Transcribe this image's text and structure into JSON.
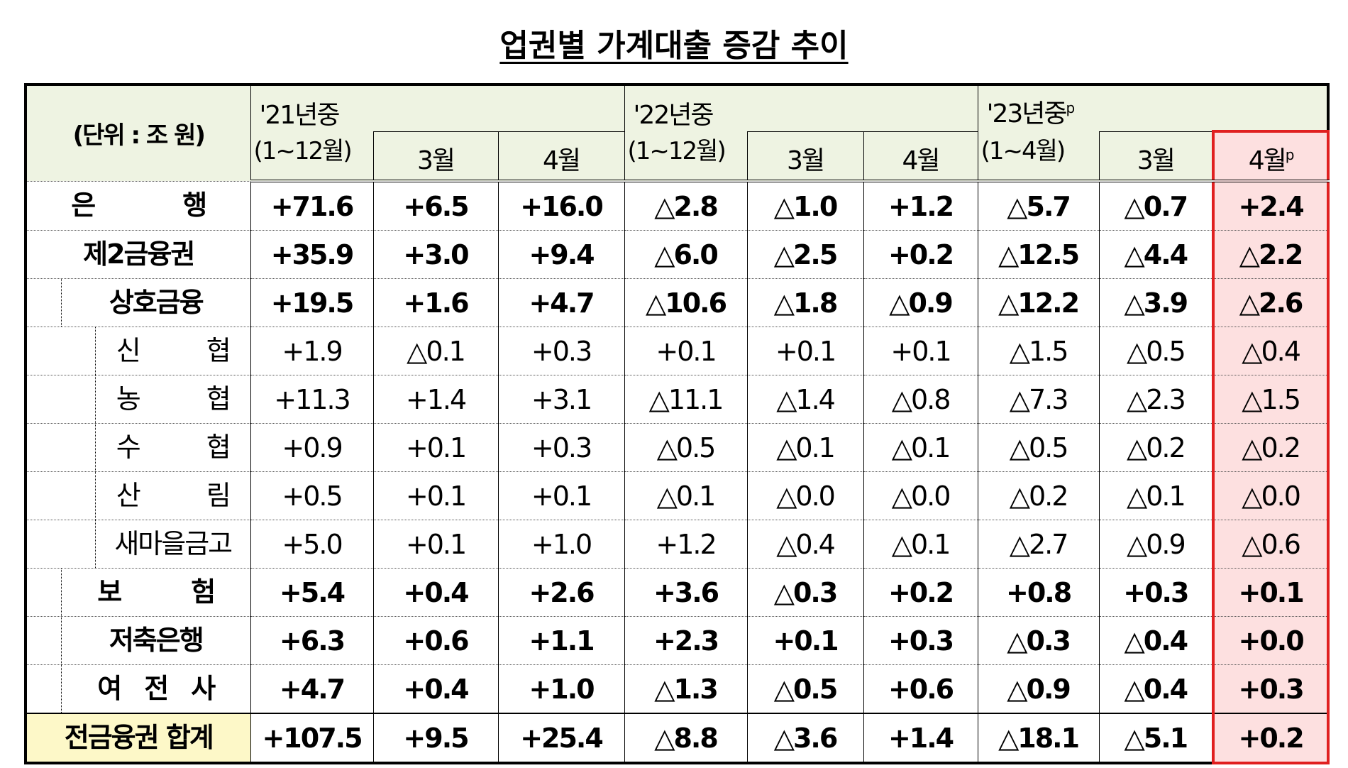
{
  "title": "업권별 가계대출 증감 추이",
  "table": {
    "unit": "(단위 : 조 원)",
    "groups": [
      {
        "year": "'21년중",
        "period": "(1~12월)"
      },
      {
        "year": "'22년중",
        "period": "(1~12월)"
      },
      {
        "year": "'23년중",
        "year_sup": "p",
        "period": "(1~4월)"
      }
    ],
    "months": [
      {
        "text": "3월"
      },
      {
        "text": "4월"
      },
      {
        "text": "3월"
      },
      {
        "text": "4월"
      },
      {
        "text": "3월"
      },
      {
        "text": "4월",
        "sup": "p"
      }
    ],
    "rows": [
      {
        "label": "은 행",
        "values": [
          "+71.6",
          "+6.5",
          "+16.0",
          "△2.8",
          "△1.0",
          "+1.2",
          "△5.7",
          "△0.7",
          "+2.4"
        ]
      },
      {
        "label": "제2금융권",
        "values": [
          "+35.9",
          "+3.0",
          "+9.4",
          "△6.0",
          "△2.5",
          "+0.2",
          "△12.5",
          "△4.4",
          "△2.2"
        ]
      },
      {
        "label": "상호금융",
        "values": [
          "+19.5",
          "+1.6",
          "+4.7",
          "△10.6",
          "△1.8",
          "△0.9",
          "△12.2",
          "△3.9",
          "△2.6"
        ]
      },
      {
        "label": "신 협",
        "values": [
          "+1.9",
          "△0.1",
          "+0.3",
          "+0.1",
          "+0.1",
          "+0.1",
          "△1.5",
          "△0.5",
          "△0.4"
        ]
      },
      {
        "label": "농 협",
        "values": [
          "+11.3",
          "+1.4",
          "+3.1",
          "△11.1",
          "△1.4",
          "△0.8",
          "△7.3",
          "△2.3",
          "△1.5"
        ]
      },
      {
        "label": "수 협",
        "values": [
          "+0.9",
          "+0.1",
          "+0.3",
          "△0.5",
          "△0.1",
          "△0.1",
          "△0.5",
          "△0.2",
          "△0.2"
        ]
      },
      {
        "label": "산 림",
        "values": [
          "+0.5",
          "+0.1",
          "+0.1",
          "△0.1",
          "△0.0",
          "△0.0",
          "△0.2",
          "△0.1",
          "△0.0"
        ]
      },
      {
        "label": "새마을금고",
        "values": [
          "+5.0",
          "+0.1",
          "+1.0",
          "+1.2",
          "△0.4",
          "△0.1",
          "△2.7",
          "△0.9",
          "△0.6"
        ]
      },
      {
        "label": "보 험",
        "values": [
          "+5.4",
          "+0.4",
          "+2.6",
          "+3.6",
          "△0.3",
          "+0.2",
          "+0.8",
          "+0.3",
          "+0.1"
        ]
      },
      {
        "label": "저축은행",
        "values": [
          "+6.3",
          "+0.6",
          "+1.1",
          "+2.3",
          "+0.1",
          "+0.3",
          "△0.3",
          "△0.4",
          "+0.0"
        ]
      },
      {
        "label": "여 전 사",
        "values": [
          "+4.7",
          "+0.4",
          "+1.0",
          "△1.3",
          "△0.5",
          "+0.6",
          "△0.9",
          "△0.4",
          "+0.3"
        ]
      },
      {
        "label": "전금융권 합계",
        "values": [
          "+107.5",
          "+9.5",
          "+25.4",
          "△8.8",
          "△3.6",
          "+1.4",
          "△18.1",
          "△5.1",
          "+0.2"
        ]
      }
    ]
  }
}
